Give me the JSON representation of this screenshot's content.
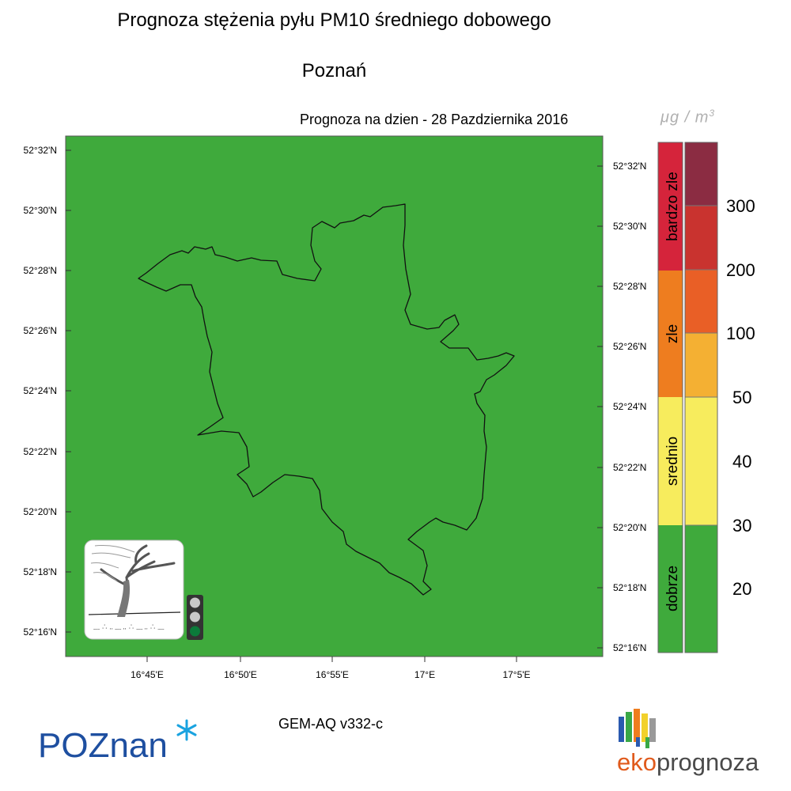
{
  "title": "Prognoza stężenia pyłu PM10 średniego dobowego",
  "subtitle": "Poznań",
  "forecast_date": "Prognoza na dzien -  28 Pazdziernika 2016",
  "unit": {
    "base": "μg / m",
    "exponent": "3"
  },
  "model": "GEM-AQ v332-c",
  "map": {
    "fill_color": "#3faa3c",
    "lat_labels": [
      "52°32'N",
      "52°30'N",
      "52°28'N",
      "52°26'N",
      "52°24'N",
      "52°22'N",
      "52°20'N",
      "52°18'N",
      "52°16'N"
    ],
    "lon_labels": [
      "16°45'E",
      "16°50'E",
      "16°55'E",
      "17°E",
      "17°5'E"
    ]
  },
  "legend": {
    "categories": [
      {
        "label": "bardzo zle",
        "color": "#d5243b"
      },
      {
        "label": "zle",
        "color": "#ee7d1f"
      },
      {
        "label": "srednio",
        "color": "#f7ec5d"
      },
      {
        "label": "dobrze",
        "color": "#3faa3c"
      }
    ],
    "scale_colors": [
      "#8b2c42",
      "#c9332f",
      "#e95f26",
      "#f4b033",
      "#f7ec5d",
      "#3faa3c"
    ],
    "scale_labels": [
      "300",
      "200",
      "100",
      "50",
      "40",
      "30",
      "20"
    ]
  },
  "traffic_light": {
    "active": "green"
  },
  "logos": {
    "poznan": "POZnan",
    "eko_prefix": "eko",
    "eko_suffix": "prognoza"
  }
}
